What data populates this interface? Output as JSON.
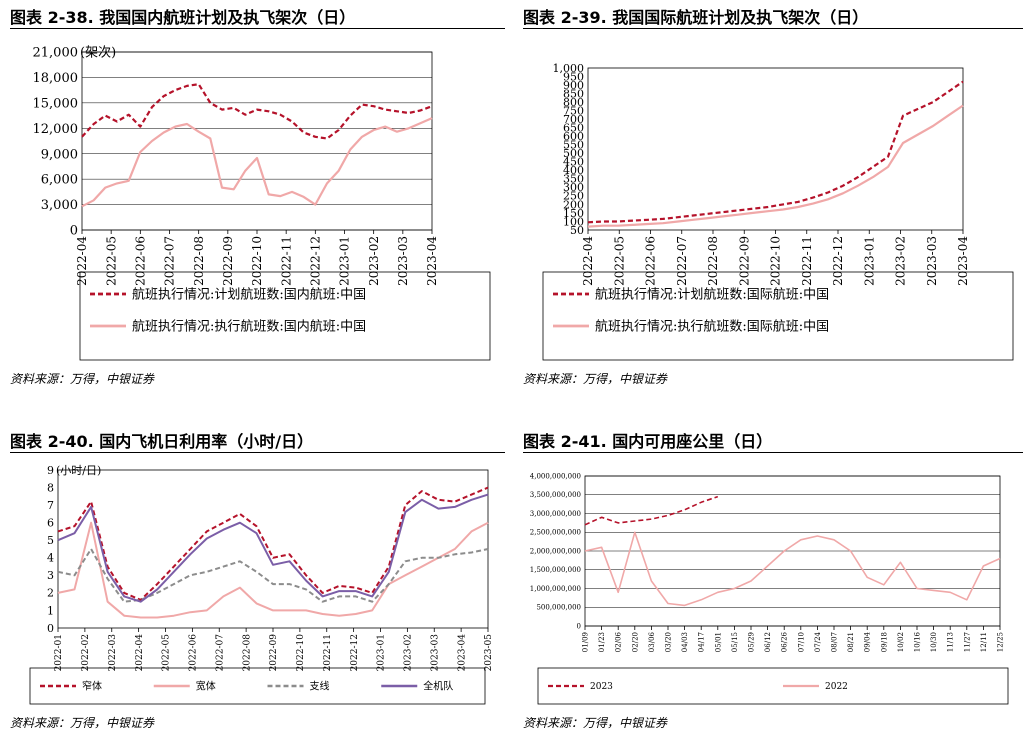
{
  "source": "资料来源：万得，中银证券",
  "charts": [
    {
      "title": "图表 2-38. 我国国内航班计划及执飞架次（日）",
      "unit_label": "(架次)",
      "chart_data": {
        "type": "line",
        "ylim": [
          0,
          21000
        ],
        "yticks": [
          "0",
          "3,000",
          "6,000",
          "9,000",
          "12,000",
          "15,000",
          "18,000",
          "21,000"
        ],
        "xticks": [
          "2022-04",
          "2022-05",
          "2022-06",
          "2022-07",
          "2022-08",
          "2022-09",
          "2022-10",
          "2022-11",
          "2022-12",
          "2023-01",
          "2023-02",
          "2023-03",
          "2023-04"
        ],
        "grid": true,
        "legend_position": "bottom",
        "series": [
          {
            "name": "航班执行情况:计划航班数:国内航班:中国",
            "color": "#b5122a",
            "dash": true,
            "values": [
              11000,
              12500,
              13500,
              12800,
              13600,
              12200,
              14500,
              15800,
              16500,
              17000,
              17200,
              15000,
              14200,
              14400,
              13600,
              14200,
              14000,
              13600,
              12800,
              11500,
              11000,
              10800,
              11800,
              13500,
              14800,
              14600,
              14200,
              14000,
              13800,
              14100,
              14600
            ]
          },
          {
            "name": "航班执行情况:执行航班数:国内航班:中国",
            "color": "#f0a8a8",
            "dash": false,
            "values": [
              2800,
              3500,
              5000,
              5500,
              5800,
              9200,
              10500,
              11500,
              12200,
              12500,
              11600,
              10800,
              5000,
              4800,
              7000,
              8500,
              4200,
              4000,
              4500,
              3900,
              3000,
              5500,
              7000,
              9500,
              11000,
              11800,
              12200,
              11600,
              12000,
              12600,
              13200
            ]
          }
        ]
      }
    },
    {
      "title": "图表 2-39. 我国国际航班计划及执飞架次（日）",
      "chart_data": {
        "type": "line",
        "ylim": [
          50,
          1000
        ],
        "yticks": [
          "50",
          "100",
          "150",
          "200",
          "250",
          "300",
          "350",
          "400",
          "450",
          "500",
          "550",
          "600",
          "650",
          "700",
          "750",
          "800",
          "850",
          "900",
          "950",
          "1,000"
        ],
        "xticks": [
          "2022-04",
          "2022-05",
          "2022-06",
          "2022-07",
          "2022-08",
          "2022-09",
          "2022-10",
          "2022-11",
          "2022-12",
          "2023-01",
          "2023-02",
          "2023-03",
          "2023-04"
        ],
        "grid": false,
        "legend_position": "bottom",
        "series": [
          {
            "name": "航班执行情况:计划航班数:国际航班:中国",
            "color": "#b5122a",
            "dash": true,
            "values": [
              95,
              100,
              100,
              105,
              110,
              115,
              125,
              135,
              145,
              155,
              165,
              175,
              185,
              200,
              215,
              240,
              270,
              310,
              360,
              420,
              480,
              720,
              760,
              800,
              860,
              920
            ]
          },
          {
            "name": "航班执行情况:执行航班数:国际航班:中国",
            "color": "#f0a8a8",
            "dash": false,
            "values": [
              70,
              75,
              75,
              80,
              85,
              90,
              100,
              110,
              120,
              130,
              140,
              150,
              160,
              170,
              185,
              205,
              230,
              265,
              310,
              360,
              420,
              560,
              610,
              660,
              720,
              780
            ]
          }
        ]
      }
    },
    {
      "title": "图表 2-40. 国内飞机日利用率（小时/日）",
      "unit_label": "(小时/日)",
      "chart_data": {
        "type": "line",
        "ylim": [
          0,
          9
        ],
        "yticks": [
          "0",
          "1",
          "2",
          "3",
          "4",
          "5",
          "6",
          "7",
          "8",
          "9"
        ],
        "xticks": [
          "2022-01",
          "2022-02",
          "2022-03",
          "2022-04",
          "2022-05",
          "2022-06",
          "2022-07",
          "2022-08",
          "2022-09",
          "2022-10",
          "2022-11",
          "2022-12",
          "2023-01",
          "2023-02",
          "2023-03",
          "2023-04",
          "2023-05"
        ],
        "grid": false,
        "legend_position": "bottom",
        "series": [
          {
            "name": "窄体",
            "color": "#b5122a",
            "dash": true,
            "values": [
              5.5,
              5.8,
              7.2,
              3.5,
              2.0,
              1.6,
              2.5,
              3.5,
              4.5,
              5.5,
              6.0,
              6.5,
              5.8,
              4.0,
              4.2,
              3.0,
              2.0,
              2.4,
              2.3,
              2.0,
              3.5,
              7.0,
              7.8,
              7.3,
              7.2,
              7.6,
              8.0
            ]
          },
          {
            "name": "宽体",
            "color": "#f0a8a8",
            "dash": false,
            "values": [
              2.0,
              2.2,
              6.0,
              1.5,
              0.7,
              0.6,
              0.6,
              0.7,
              0.9,
              1.0,
              1.8,
              2.3,
              1.4,
              1.0,
              1.0,
              1.0,
              0.8,
              0.7,
              0.8,
              1.0,
              2.5,
              3.0,
              3.5,
              4.0,
              4.5,
              5.5,
              6.0
            ]
          },
          {
            "name": "支线",
            "color": "#8c8c8c",
            "dash": true,
            "values": [
              3.2,
              3.0,
              4.5,
              2.8,
              1.5,
              1.6,
              2.0,
              2.5,
              3.0,
              3.2,
              3.5,
              3.8,
              3.2,
              2.5,
              2.5,
              2.2,
              1.5,
              1.8,
              1.8,
              1.5,
              2.5,
              3.8,
              4.0,
              4.0,
              4.2,
              4.3,
              4.5
            ]
          },
          {
            "name": "全机队",
            "color": "#7b5ea7",
            "dash": false,
            "values": [
              5.0,
              5.4,
              6.9,
              3.2,
              1.8,
              1.5,
              2.2,
              3.2,
              4.2,
              5.1,
              5.6,
              6.0,
              5.4,
              3.6,
              3.8,
              2.7,
              1.8,
              2.1,
              2.1,
              1.8,
              3.2,
              6.6,
              7.3,
              6.8,
              6.9,
              7.3,
              7.6
            ]
          }
        ]
      }
    },
    {
      "title": "图表 2-41. 国内可用座公里（日）",
      "chart_data": {
        "type": "line",
        "ylim": [
          0,
          4000000000
        ],
        "yticks": [
          "0",
          "500,000,000",
          "1,000,000,000",
          "1,500,000,000",
          "2,000,000,000",
          "2,500,000,000",
          "3,000,000,000",
          "3,500,000,000",
          "4,000,000,000"
        ],
        "xticks": [
          "01/09",
          "01/23",
          "02/06",
          "02/20",
          "03/06",
          "03/20",
          "04/03",
          "04/17",
          "05/01",
          "05/15",
          "05/29",
          "06/12",
          "06/26",
          "07/10",
          "07/24",
          "08/07",
          "08/21",
          "09/04",
          "09/18",
          "10/02",
          "10/16",
          "10/30",
          "11/13",
          "11/27",
          "12/11",
          "12/25"
        ],
        "grid": true,
        "legend_position": "bottom",
        "series": [
          {
            "name": "2023",
            "color": "#b5122a",
            "dash": true,
            "values": [
              2700000000,
              2900000000,
              2750000000,
              2800000000,
              2850000000,
              2950000000,
              3100000000,
              3300000000,
              3450000000
            ]
          },
          {
            "name": "2022",
            "color": "#f0a8a8",
            "dash": false,
            "values": [
              2000000000,
              2100000000,
              900000000,
              2500000000,
              1200000000,
              600000000,
              550000000,
              700000000,
              900000000,
              1000000000,
              1200000000,
              1600000000,
              2000000000,
              2300000000,
              2400000000,
              2300000000,
              2000000000,
              1300000000,
              1100000000,
              1700000000,
              1000000000,
              950000000,
              900000000,
              700000000,
              1600000000,
              1800000000
            ]
          }
        ]
      }
    }
  ]
}
